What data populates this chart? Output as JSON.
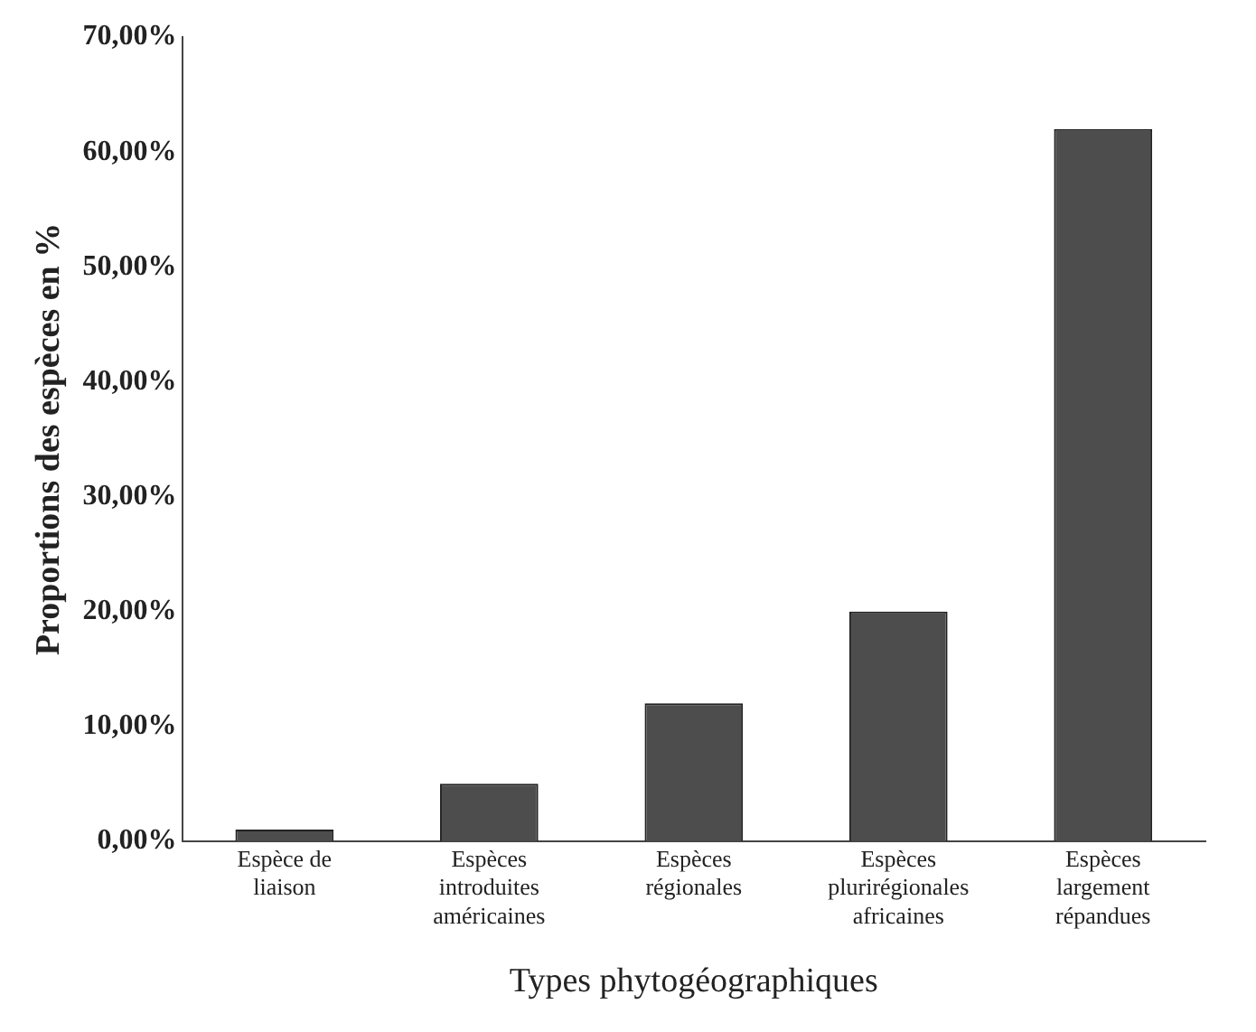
{
  "chart_data": {
    "type": "bar",
    "xlabel": "Types phytogéographiques",
    "ylabel": "Proportions des espèces en %",
    "categories": [
      "Espèce de liaison",
      "Espèces introduites américaines",
      "Espèces régionales",
      "Espèces plurirégionales africaines",
      "Espèces largement répandues"
    ],
    "values": [
      1,
      5,
      12,
      20,
      62
    ],
    "color": "#4d4d4d",
    "grid": false,
    "legend": false,
    "ylim": [
      0,
      70
    ],
    "yticks": [
      {
        "value": 0,
        "label": "0,00%"
      },
      {
        "value": 10,
        "label": "10,00%"
      },
      {
        "value": 20,
        "label": "20,00%"
      },
      {
        "value": 30,
        "label": "30,00%"
      },
      {
        "value": 40,
        "label": "40,00%"
      },
      {
        "value": 50,
        "label": "50,00%"
      },
      {
        "value": 60,
        "label": "60,00%"
      },
      {
        "value": 70,
        "label": "70,00%"
      }
    ]
  }
}
